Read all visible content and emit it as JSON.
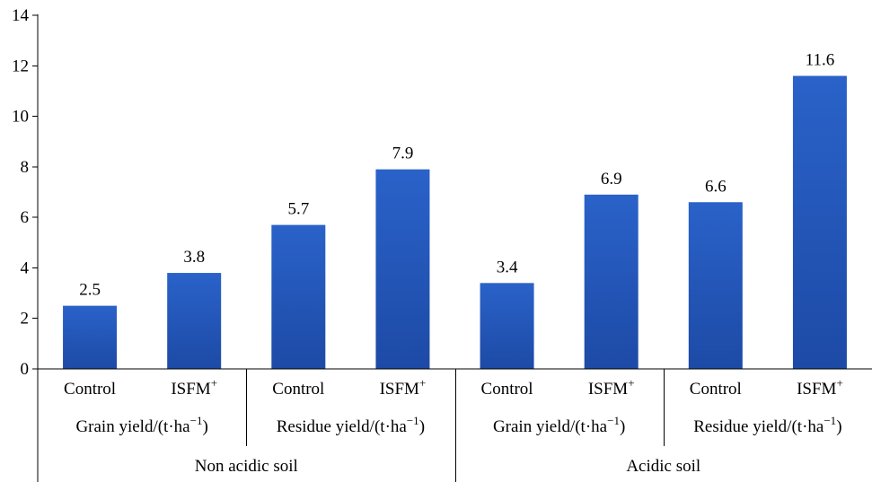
{
  "chart_data": {
    "type": "bar",
    "ylim": [
      0,
      14
    ],
    "yticks": [
      0,
      2,
      4,
      6,
      8,
      10,
      12,
      14
    ],
    "grid": false,
    "legend": "none",
    "bar_color": "#2a62c9",
    "bar_color_dark": "#1d4aa6",
    "groups": [
      {
        "label": "Non acidic soil",
        "subgroups": [
          {
            "label_main": "Grain yield/(t·ha",
            "label_sup": "−1",
            "label_end": ")",
            "bars": [
              {
                "label": "Control",
                "sup": "",
                "value": 2.5,
                "value_label": "2.5"
              },
              {
                "label": "ISFM",
                "sup": "+",
                "value": 3.8,
                "value_label": "3.8"
              }
            ]
          },
          {
            "label_main": "Residue yield/(t·ha",
            "label_sup": "−1",
            "label_end": ")",
            "bars": [
              {
                "label": "Control",
                "sup": "",
                "value": 5.7,
                "value_label": "5.7"
              },
              {
                "label": "ISFM",
                "sup": "+",
                "value": 7.9,
                "value_label": "7.9"
              }
            ]
          }
        ]
      },
      {
        "label": "Acidic soil",
        "subgroups": [
          {
            "label_main": "Grain yield/(t·ha",
            "label_sup": "−1",
            "label_end": ")",
            "bars": [
              {
                "label": "Control",
                "sup": "",
                "value": 3.4,
                "value_label": "3.4"
              },
              {
                "label": "ISFM",
                "sup": "+",
                "value": 6.9,
                "value_label": "6.9"
              }
            ]
          },
          {
            "label_main": "Residue yield/(t·ha",
            "label_sup": "−1",
            "label_end": ")",
            "bars": [
              {
                "label": "Control",
                "sup": "",
                "value": 6.6,
                "value_label": "6.6"
              },
              {
                "label": "ISFM",
                "sup": "+",
                "value": 11.6,
                "value_label": "11.6"
              }
            ]
          }
        ]
      }
    ]
  }
}
